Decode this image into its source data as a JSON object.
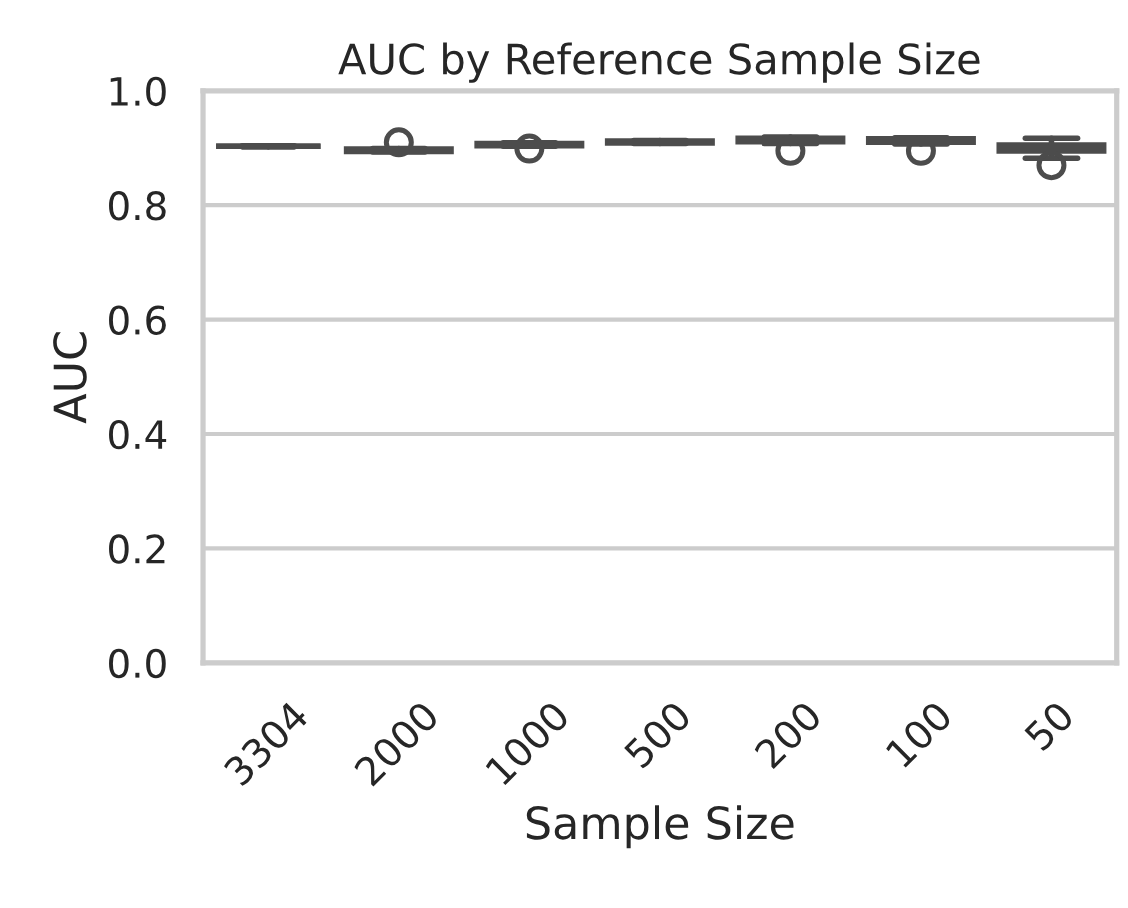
{
  "chart_data": {
    "type": "box",
    "title": "AUC by Reference Sample Size",
    "xlabel": "Sample Size",
    "ylabel": "AUC",
    "categories": [
      "3304",
      "2000",
      "1000",
      "500",
      "200",
      "100",
      "50"
    ],
    "color": "#4c4c4c",
    "boxes": [
      {
        "low": 0.902,
        "q1": 0.903,
        "median": 0.903,
        "q3": 0.903,
        "high": 0.904
      },
      {
        "low": 0.893,
        "q1": 0.894,
        "median": 0.896,
        "q3": 0.898,
        "high": 0.899,
        "outliers": [
          0.91
        ]
      },
      {
        "low": 0.903,
        "q1": 0.904,
        "median": 0.906,
        "q3": 0.908,
        "high": 0.909,
        "outliers": [
          0.899
        ]
      },
      {
        "low": 0.908,
        "q1": 0.909,
        "median": 0.91,
        "q3": 0.912,
        "high": 0.913
      },
      {
        "low": 0.908,
        "q1": 0.911,
        "median": 0.913,
        "q3": 0.917,
        "high": 0.919,
        "outliers": [
          0.895
        ]
      },
      {
        "low": 0.907,
        "q1": 0.91,
        "median": 0.912,
        "q3": 0.916,
        "high": 0.918,
        "outliers": [
          0.895
        ]
      },
      {
        "low": 0.882,
        "q1": 0.895,
        "median": 0.9,
        "q3": 0.905,
        "high": 0.917,
        "outliers": [
          0.87
        ]
      }
    ],
    "ylim": [
      0,
      1
    ],
    "yticks": [
      {
        "value": 0,
        "label": "0.0"
      },
      0.2,
      0.4,
      0.6,
      0.8,
      {
        "value": 1,
        "label": "1.0"
      }
    ],
    "grid": "y"
  }
}
